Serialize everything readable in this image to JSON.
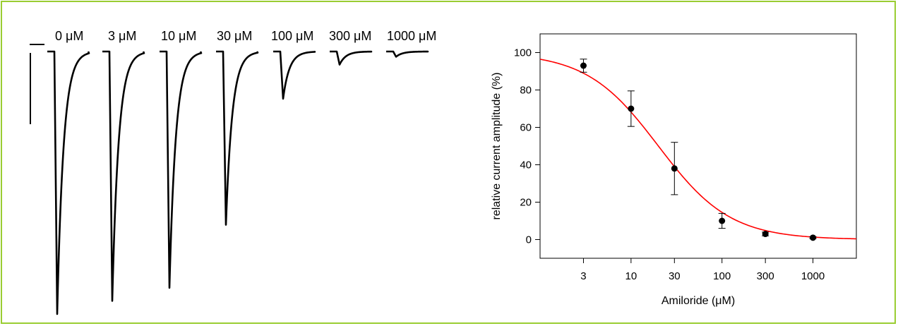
{
  "traces": {
    "labels": [
      "0 μM",
      "3 μM",
      "10 μM",
      "30 μM",
      "100 μM",
      "300 μM",
      "1000 μM"
    ],
    "relative_amplitudes": [
      1.0,
      0.95,
      0.9,
      0.66,
      0.18,
      0.05,
      0.02
    ]
  },
  "chart_data": {
    "type": "scatter",
    "x": [
      3,
      10,
      30,
      100,
      300,
      1000
    ],
    "y": [
      93,
      70,
      38,
      10,
      3,
      1
    ],
    "y_err": [
      3.5,
      9.5,
      14,
      4,
      1,
      0.5
    ],
    "xlabel": "Amiloride (μM)",
    "ylabel": "relative current amplitude (%)",
    "x_scale": "log",
    "xlim": [
      1,
      3000
    ],
    "ylim": [
      -10,
      110
    ],
    "x_ticks": [
      3,
      10,
      30,
      100,
      300,
      1000
    ],
    "x_tick_labels": [
      "3",
      "10",
      "30",
      "100",
      "300",
      "1000"
    ],
    "y_ticks": [
      0,
      20,
      40,
      60,
      80,
      100
    ],
    "y_tick_labels": [
      "0",
      "20",
      "40",
      "60",
      "80",
      "100"
    ],
    "fit": {
      "model": "hill",
      "top": 100,
      "bottom": 0,
      "ic50": 20,
      "hill": 1.1
    },
    "grid": false,
    "colors": {
      "fit": "#ff0000",
      "points": "#000000",
      "frame": "#9ACD32"
    }
  }
}
